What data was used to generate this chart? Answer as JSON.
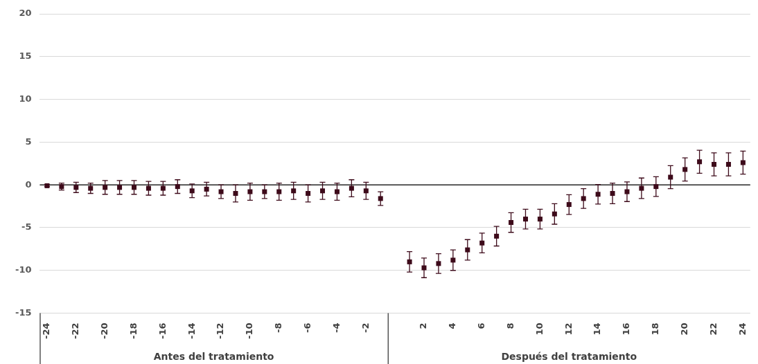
{
  "chart_data": {
    "type": "scatter",
    "marker": "square",
    "color": "#3d0a1a",
    "categories": [
      "-24",
      null,
      "-22",
      null,
      "-20",
      null,
      "-18",
      null,
      "-16",
      null,
      "-14",
      null,
      "-12",
      null,
      "-10",
      null,
      "-8",
      null,
      "-6",
      null,
      "-4",
      null,
      "-2",
      null,
      null,
      null,
      "2",
      null,
      "4",
      null,
      "6",
      null,
      "8",
      null,
      "10",
      null,
      "12",
      null,
      "14",
      null,
      "16",
      null,
      "18",
      null,
      "20",
      null,
      "22",
      null,
      "24"
    ],
    "values": [
      -0.1,
      -0.2,
      -0.3,
      -0.4,
      -0.3,
      -0.3,
      -0.3,
      -0.4,
      -0.4,
      -0.2,
      -0.7,
      -0.5,
      -0.8,
      -1.0,
      -0.8,
      -0.8,
      -0.8,
      -0.7,
      -1.0,
      -0.7,
      -0.8,
      -0.4,
      -0.7,
      -1.6,
      null,
      -9.0,
      -9.7,
      -9.2,
      -8.8,
      -7.6,
      -6.8,
      -6.0,
      -4.4,
      -4.0,
      -4.0,
      -3.4,
      -2.3,
      -1.6,
      -1.1,
      -1.0,
      -0.8,
      -0.4,
      -0.2,
      0.9,
      1.8,
      2.7,
      2.4,
      2.4,
      2.6
    ],
    "errors": [
      0.1,
      0.4,
      0.6,
      0.6,
      0.8,
      0.8,
      0.8,
      0.8,
      0.8,
      0.8,
      0.8,
      0.8,
      0.8,
      1.0,
      1.0,
      0.8,
      1.0,
      1.0,
      1.0,
      1.0,
      1.0,
      1.0,
      1.0,
      0.8,
      null,
      1.2,
      1.15,
      1.15,
      1.2,
      1.2,
      1.15,
      1.15,
      1.15,
      1.15,
      1.15,
      1.2,
      1.15,
      1.15,
      1.15,
      1.2,
      1.15,
      1.2,
      1.15,
      1.35,
      1.35,
      1.35,
      1.35,
      1.35,
      1.35
    ],
    "ylim": [
      -15,
      20
    ],
    "yticks": [
      -15,
      -10,
      -5,
      0,
      5,
      10,
      15,
      20
    ],
    "grid": "y",
    "legend": false,
    "ref_lines": [
      {
        "axis": "y",
        "value": 0,
        "color": "#000000"
      }
    ],
    "annotations": [
      "Antes del tratamiento",
      "Después del tratamiento"
    ]
  }
}
